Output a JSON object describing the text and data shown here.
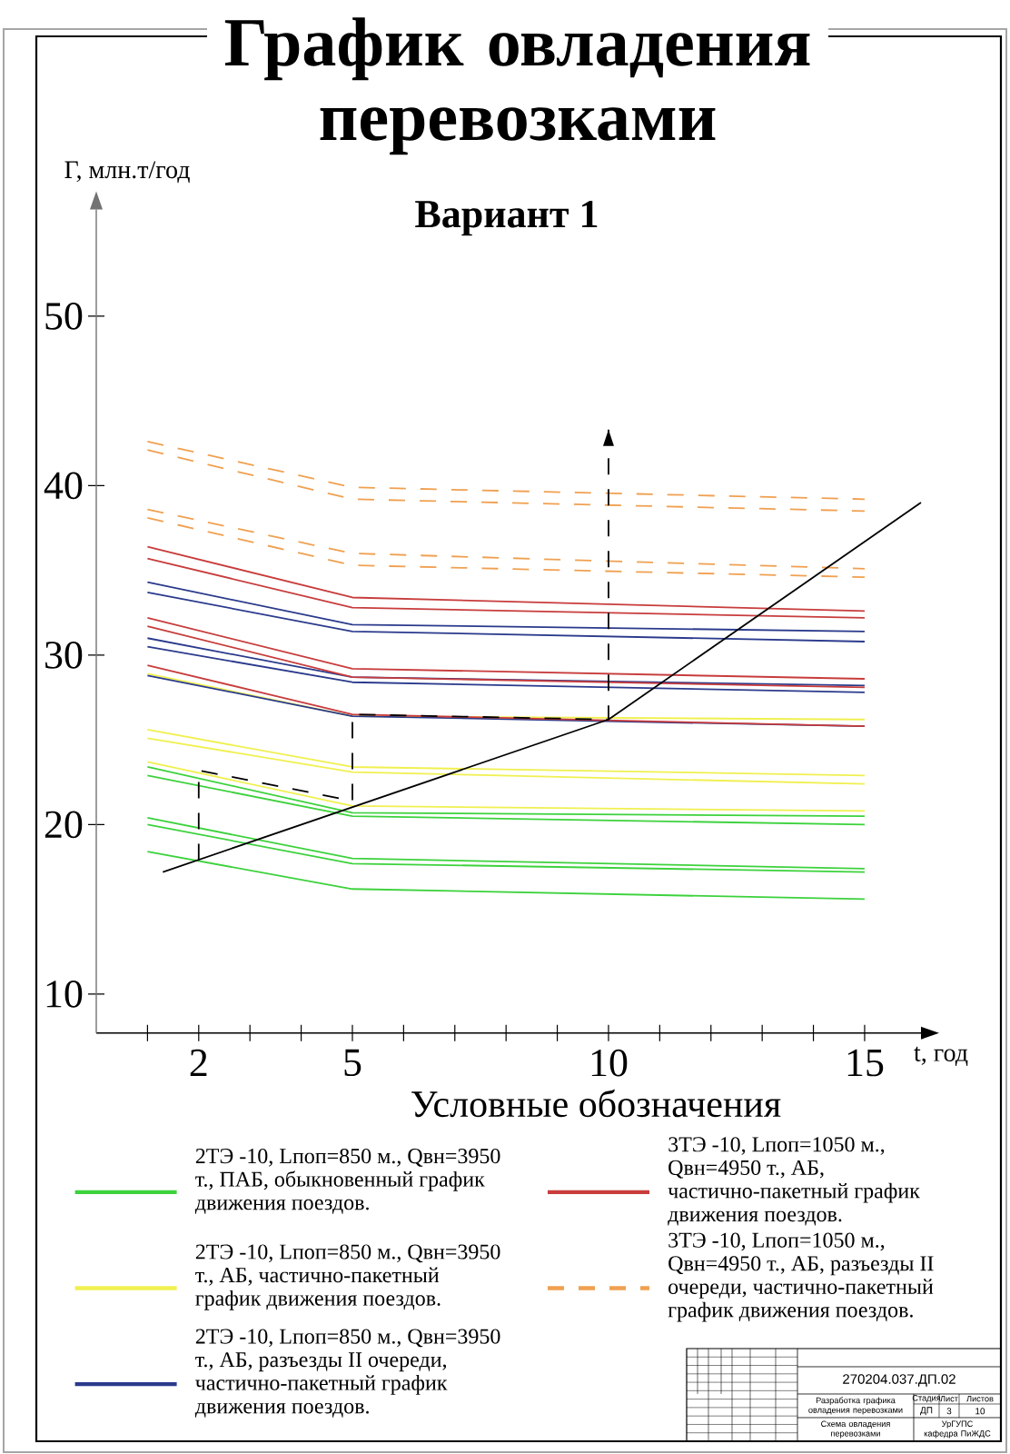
{
  "chart_data": {
    "type": "line",
    "title": "График овладения перевозками",
    "subtitle": "Вариант 1",
    "xlabel": "t, год",
    "ylabel": "Г, млн.т/год",
    "legend_title": "Условные обозначения",
    "xlim": [
      0,
      16.1
    ],
    "ylim": [
      7.7,
      56.3
    ],
    "xticks": [
      {
        "value": 1,
        "label": null
      },
      2,
      {
        "value": 3,
        "label": null
      },
      {
        "value": 4,
        "label": null
      },
      5,
      {
        "value": 6,
        "label": null
      },
      {
        "value": 7,
        "label": null
      },
      {
        "value": 8,
        "label": null
      },
      {
        "value": 9,
        "label": null
      },
      10,
      {
        "value": 11,
        "label": null
      },
      {
        "value": 12,
        "label": null
      },
      {
        "value": 13,
        "label": null
      },
      {
        "value": 14,
        "label": null
      },
      15
    ],
    "yticks": [
      10,
      20,
      30,
      40,
      50
    ],
    "legend": "bottom",
    "series": [
      {
        "name": "2ТЭ -10, Lпоп=850 м., Qвн=3950 т., ПАБ, обыкновенный график движения поездов.",
        "color": "#3cd23c",
        "x": [
          1,
          5,
          15
        ],
        "values": [
          23.4,
          20.7,
          20.5
        ]
      },
      {
        "color": "#3cd23c",
        "x": [
          1,
          5,
          15
        ],
        "values": [
          22.9,
          20.5,
          20.0
        ]
      },
      {
        "color": "#3cd23c",
        "x": [
          1,
          5,
          15
        ],
        "values": [
          20.4,
          18.0,
          17.4
        ]
      },
      {
        "color": "#3cd23c",
        "x": [
          1,
          5,
          15
        ],
        "values": [
          20.0,
          17.7,
          17.2
        ]
      },
      {
        "color": "#3cd23c",
        "x": [
          1,
          5,
          15
        ],
        "values": [
          18.4,
          16.2,
          15.6
        ]
      },
      {
        "name": "2ТЭ -10, Lпоп=850 м., Qвн=3950 т., АБ, частично-пакетный график движения поездов.",
        "color": "#f0f050",
        "x": [
          1,
          5,
          15
        ],
        "values": [
          25.6,
          23.4,
          22.9
        ]
      },
      {
        "color": "#f0f050",
        "x": [
          1,
          5,
          15
        ],
        "values": [
          25.1,
          23.1,
          22.4
        ]
      },
      {
        "color": "#f0f050",
        "x": [
          1,
          5,
          15
        ],
        "values": [
          28.9,
          26.4,
          26.2
        ]
      },
      {
        "color": "#f0f050",
        "x": [
          1,
          5,
          15
        ],
        "values": [
          23.7,
          21.1,
          20.8
        ]
      },
      {
        "name": "2ТЭ -10, Lпоп=850 м., Qвн=3950 т., АБ, разъезды II очереди, частично-пакетный график движения поездов.",
        "color": "#2a3a8c",
        "x": [
          1,
          5,
          15
        ],
        "values": [
          34.3,
          31.8,
          31.4
        ]
      },
      {
        "color": "#2a3a8c",
        "x": [
          1,
          5,
          15
        ],
        "values": [
          33.7,
          31.4,
          30.8
        ]
      },
      {
        "color": "#2a3a8c",
        "x": [
          1,
          5,
          15
        ],
        "values": [
          31.0,
          28.7,
          28.2
        ]
      },
      {
        "color": "#2a3a8c",
        "x": [
          1,
          5,
          15
        ],
        "values": [
          30.5,
          28.4,
          27.8
        ]
      },
      {
        "color": "#2a3a8c",
        "x": [
          1,
          5,
          15
        ],
        "values": [
          28.8,
          26.4,
          25.8
        ]
      },
      {
        "name": "3ТЭ -10, Lпоп=1050 м., Qвн=4950 т., АБ, частично-пакетный график движения поездов.",
        "color": "#c83c3c",
        "x": [
          1,
          5,
          15
        ],
        "values": [
          36.4,
          33.4,
          32.6
        ]
      },
      {
        "color": "#c83c3c",
        "x": [
          1,
          5,
          15
        ],
        "values": [
          35.7,
          32.8,
          32.2
        ]
      },
      {
        "color": "#c83c3c",
        "x": [
          1,
          5,
          15
        ],
        "values": [
          32.2,
          29.2,
          28.6
        ]
      },
      {
        "color": "#c83c3c",
        "x": [
          1,
          5,
          15
        ],
        "values": [
          31.7,
          28.7,
          28.1
        ]
      },
      {
        "color": "#c83c3c",
        "x": [
          1,
          5,
          15
        ],
        "values": [
          29.4,
          26.5,
          25.8
        ]
      },
      {
        "name": "3ТЭ -10, Lпоп=1050 м., Qвн=4950 т., АБ, разъезды II очереди, частично-пакетный график движения поездов.",
        "color": "#f0a050",
        "line_style": "dashed",
        "x": [
          1,
          5,
          15
        ],
        "values": [
          42.6,
          39.9,
          39.2
        ]
      },
      {
        "color": "#f0a050",
        "line_style": "dashed",
        "x": [
          1,
          5,
          15
        ],
        "values": [
          42.1,
          39.2,
          38.5
        ]
      },
      {
        "color": "#f0a050",
        "line_style": "dashed",
        "x": [
          1,
          5,
          15
        ],
        "values": [
          38.6,
          36.0,
          35.1
        ]
      },
      {
        "color": "#f0a050",
        "line_style": "dashed",
        "x": [
          1,
          5,
          15
        ],
        "values": [
          38.1,
          35.3,
          34.6
        ]
      },
      {
        "color": "#000000",
        "x": [
          1.3,
          10,
          16.1
        ],
        "values": [
          17.2,
          26.2,
          39.0
        ]
      },
      {
        "color": "#000000",
        "line_style": "dashed",
        "x": [
          2,
          2,
          5,
          5,
          10,
          10
        ],
        "values": [
          17.9,
          23.2,
          21.4,
          26.5,
          26.2,
          43.3
        ]
      }
    ],
    "annotations": [
      "270204.037.ДП.02",
      "Разработка графика овладения перевозками",
      "Стадия",
      "Лист",
      "Листов",
      "ДП",
      "3",
      "10",
      "Схема овладения перевозками",
      "УрГУПС кафедра ПиЖДС"
    ]
  }
}
